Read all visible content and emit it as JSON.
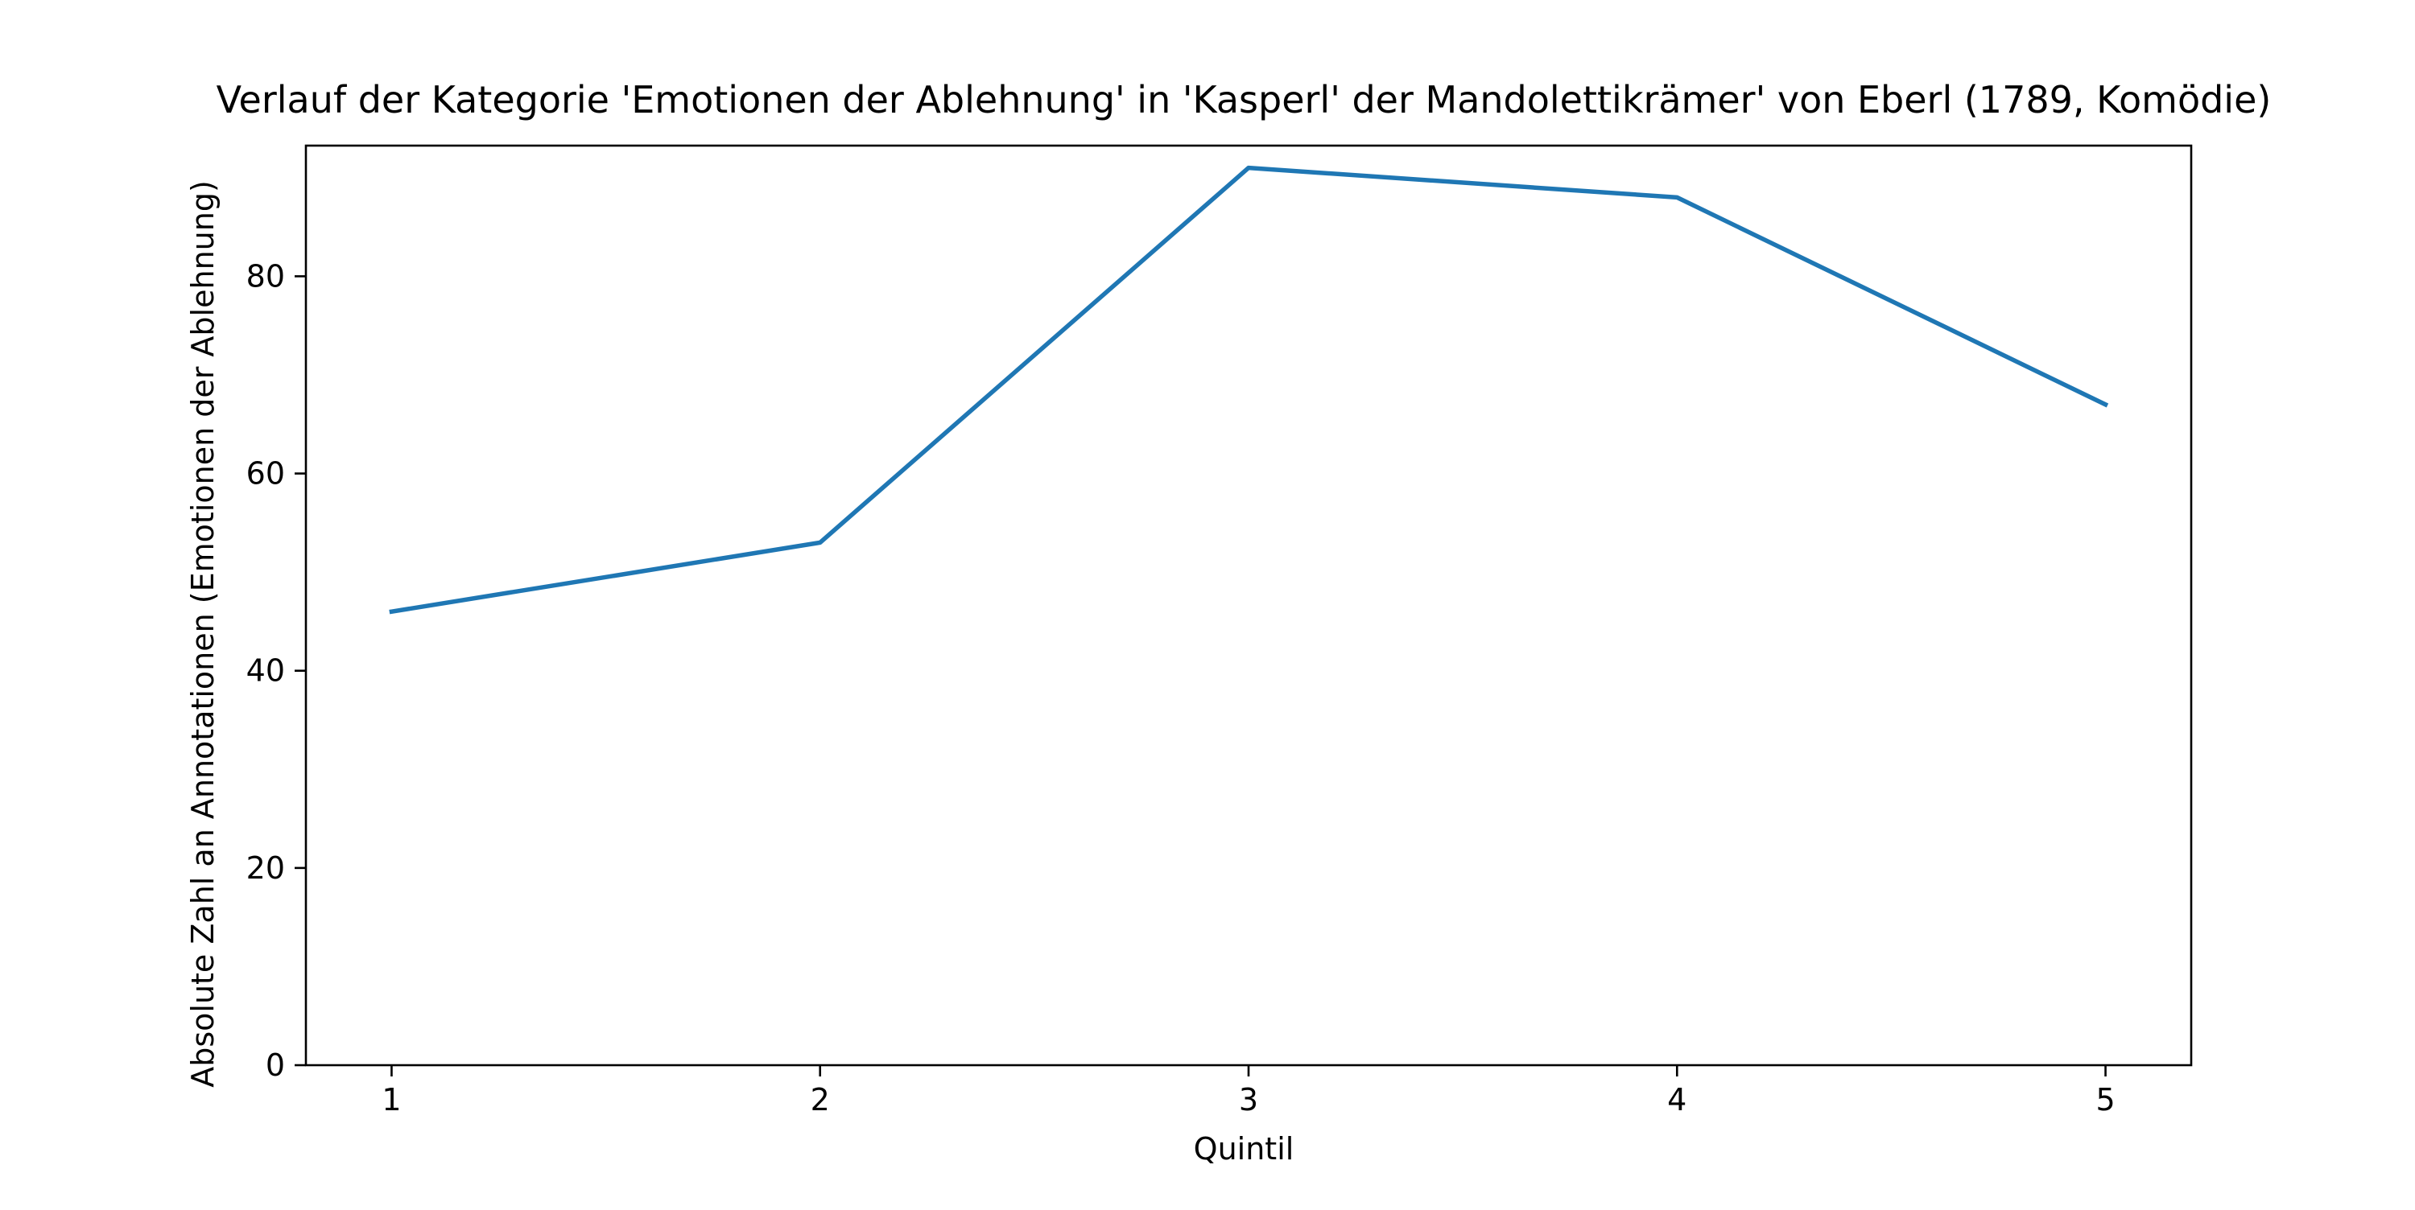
{
  "chart_data": {
    "type": "line",
    "title": "Verlauf der Kategorie 'Emotionen der Ablehnung' in 'Kasperl' der Mandolettikrämer' von Eberl (1789, Komödie)",
    "xlabel": "Quintil",
    "ylabel": "Absolute Zahl an Annotationen (Emotionen der Ablehnung)",
    "x": [
      1,
      2,
      3,
      4,
      5
    ],
    "x_ticks": [
      "1",
      "2",
      "3",
      "4",
      "5"
    ],
    "y_ticks": [
      "0",
      "20",
      "40",
      "60",
      "80"
    ],
    "xlim": [
      0.8,
      5.2
    ],
    "ylim": [
      0,
      93.25
    ],
    "grid": false,
    "series": [
      {
        "values": [
          46,
          53,
          91,
          88,
          67
        ],
        "color": "#1f77b4"
      }
    ]
  }
}
